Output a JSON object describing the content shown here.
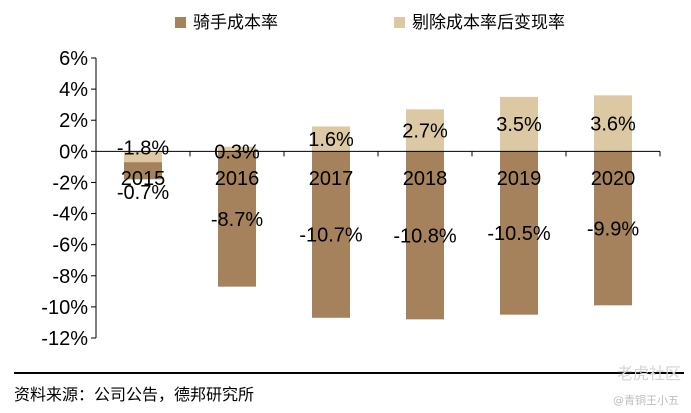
{
  "chart_data": {
    "type": "bar",
    "categories": [
      "2015",
      "2016",
      "2017",
      "2018",
      "2019",
      "2020"
    ],
    "series": [
      {
        "name": "骑手成本率",
        "color": "#a5825c",
        "values": [
          -1.8,
          -8.7,
          -10.7,
          -10.8,
          -10.5,
          -9.9
        ],
        "labels": [
          "-1.8%",
          "-8.7%",
          "-10.7%",
          "-10.8%",
          "-10.5%",
          "-9.9%"
        ]
      },
      {
        "name": "剔除成本率后变现率",
        "color": "#dcc9a4",
        "values": [
          -0.7,
          0.3,
          1.6,
          2.7,
          3.5,
          3.6
        ],
        "labels": [
          "-0.7%",
          "0.3%",
          "1.6%",
          "2.7%",
          "3.5%",
          "3.6%"
        ]
      }
    ],
    "ylim": [
      -12,
      6
    ],
    "yticks": [
      "6%",
      "4%",
      "2%",
      "0%",
      "-2%",
      "-4%",
      "-6%",
      "-8%",
      "-10%",
      "-12%"
    ],
    "ytick_values": [
      6,
      4,
      2,
      0,
      -2,
      -4,
      -6,
      -8,
      -10,
      -12
    ],
    "grid": false,
    "legend_position": "top"
  },
  "footer": {
    "source": "资料来源：公司公告，德邦研究所",
    "watermark": "老虎社区",
    "watermark_sub": "@青铜王小五"
  }
}
